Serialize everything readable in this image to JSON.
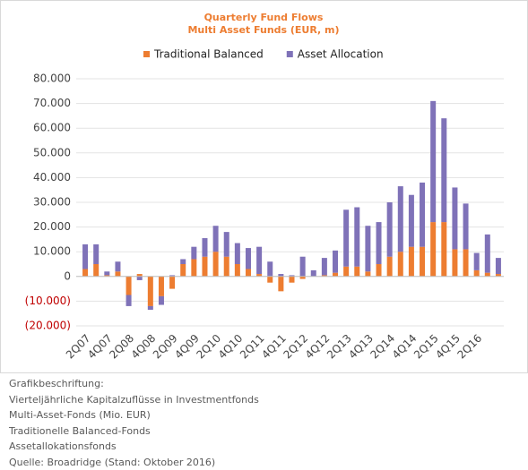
{
  "chart_data": {
    "type": "bar",
    "stacked": true,
    "title": "Quarterly Fund Flows",
    "subtitle": "Multi Asset Funds (EUR, m)",
    "categories": [
      "2Q07",
      null,
      "4Q07",
      null,
      "2Q08",
      null,
      "4Q08",
      null,
      "2Q09",
      null,
      "4Q09",
      null,
      "2Q10",
      null,
      "4Q10",
      null,
      "2Q11",
      null,
      "4Q11",
      null,
      "2Q12",
      null,
      "4Q12",
      null,
      "2Q13",
      null,
      "4Q13",
      null,
      "2Q14",
      null,
      "4Q14",
      null,
      "2Q15",
      null,
      "4Q15",
      null,
      "2Q16",
      null,
      null
    ],
    "series": [
      {
        "name": "Traditional Balanced",
        "color": "#ed7d31",
        "values": [
          3000,
          5000,
          500,
          2000,
          -7500,
          1000,
          -12000,
          -8000,
          -5000,
          5000,
          7000,
          8000,
          10000,
          8000,
          5000,
          3000,
          1000,
          -2500,
          -6000,
          -2500,
          -1000,
          0,
          500,
          1500,
          4000,
          4000,
          2000,
          5000,
          8000,
          10000,
          12000,
          12000,
          22000,
          22000,
          11000,
          11000,
          2500,
          1500,
          1000
        ]
      },
      {
        "name": "Asset Allocation",
        "color": "#7f72b8",
        "values": [
          10000,
          8000,
          1500,
          4000,
          -4500,
          -1500,
          -1500,
          -3500,
          500,
          2000,
          5000,
          7500,
          10500,
          10000,
          8500,
          8500,
          11000,
          6000,
          1000,
          500,
          8000,
          2500,
          7000,
          9000,
          23000,
          24000,
          18500,
          17000,
          22000,
          26500,
          21000,
          26000,
          49000,
          42000,
          25000,
          18500,
          7000,
          15500,
          6500
        ]
      }
    ],
    "ylim": [
      -20000,
      80000
    ],
    "yticks": [
      {
        "value": -20000,
        "label": "(20.000)"
      },
      {
        "value": -10000,
        "label": "(10.000)"
      },
      0,
      {
        "value": 10000,
        "label": "10.000"
      },
      {
        "value": 20000,
        "label": "20.000"
      },
      {
        "value": 30000,
        "label": "30.000"
      },
      {
        "value": 40000,
        "label": "40.000"
      },
      {
        "value": 50000,
        "label": "50.000"
      },
      {
        "value": 60000,
        "label": "60.000"
      },
      {
        "value": 70000,
        "label": "70.000"
      },
      {
        "value": 80000,
        "label": "80.000"
      }
    ],
    "grid": true,
    "legend": "top",
    "title_color": "#ed7d31",
    "negative_label_color": "#c00000"
  },
  "caption": {
    "heading": "Grafikbeschriftung:",
    "lines": [
      "Vierteljährliche Kapitalzuflüsse in Investmentfonds",
      "Multi-Asset-Fonds (Mio. EUR)",
      "Traditionelle Balanced-Fonds",
      "Assetallokationsfonds",
      "Quelle: Broadridge (Stand: Oktober 2016)"
    ]
  }
}
